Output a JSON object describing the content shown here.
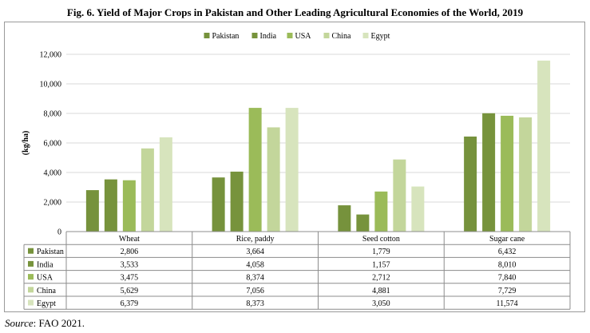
{
  "title": "Fig. 6.  Yield of Major Crops in Pakistan and Other Leading Agricultural Economies of the World, 2019",
  "source": {
    "label": "Source",
    "text": ": FAO 2021."
  },
  "chart_data": {
    "type": "bar",
    "categories": [
      "Wheat",
      "Rice, paddy",
      "Seed cotton",
      "Sugar cane"
    ],
    "series": [
      {
        "name": "Pakistan",
        "color": "#76923c",
        "values": [
          2806,
          3664,
          1779,
          6432
        ],
        "labels": [
          "2,806",
          "3,664",
          "1,779",
          "6,432"
        ]
      },
      {
        "name": "India",
        "color": "#77933c",
        "values": [
          3533,
          4058,
          1157,
          8010
        ],
        "labels": [
          "3,533",
          "4,058",
          "1,157",
          "8,010"
        ]
      },
      {
        "name": "USA",
        "color": "#9bbb59",
        "values": [
          3475,
          8374,
          2712,
          7840
        ],
        "labels": [
          "3,475",
          "8,374",
          "2,712",
          "7,840"
        ]
      },
      {
        "name": "China",
        "color": "#c3d69b",
        "values": [
          5629,
          7056,
          4881,
          7729
        ],
        "labels": [
          "5,629",
          "7,056",
          "4,881",
          "7,729"
        ]
      },
      {
        "name": "Egypt",
        "color": "#d7e4bd",
        "values": [
          6379,
          8373,
          3050,
          11574
        ],
        "labels": [
          "6,379",
          "8,373",
          "3,050",
          "11,574"
        ]
      }
    ],
    "ylabel": "(kg/ha)",
    "ylim": [
      0,
      12000
    ],
    "yticks": [
      0,
      2000,
      4000,
      6000,
      8000,
      10000,
      12000
    ],
    "ytick_labels": [
      "0",
      "2,000",
      "4,000",
      "6,000",
      "8,000",
      "10,000",
      "12,000"
    ],
    "grid": true,
    "legend": "top-center",
    "data_table": true
  }
}
